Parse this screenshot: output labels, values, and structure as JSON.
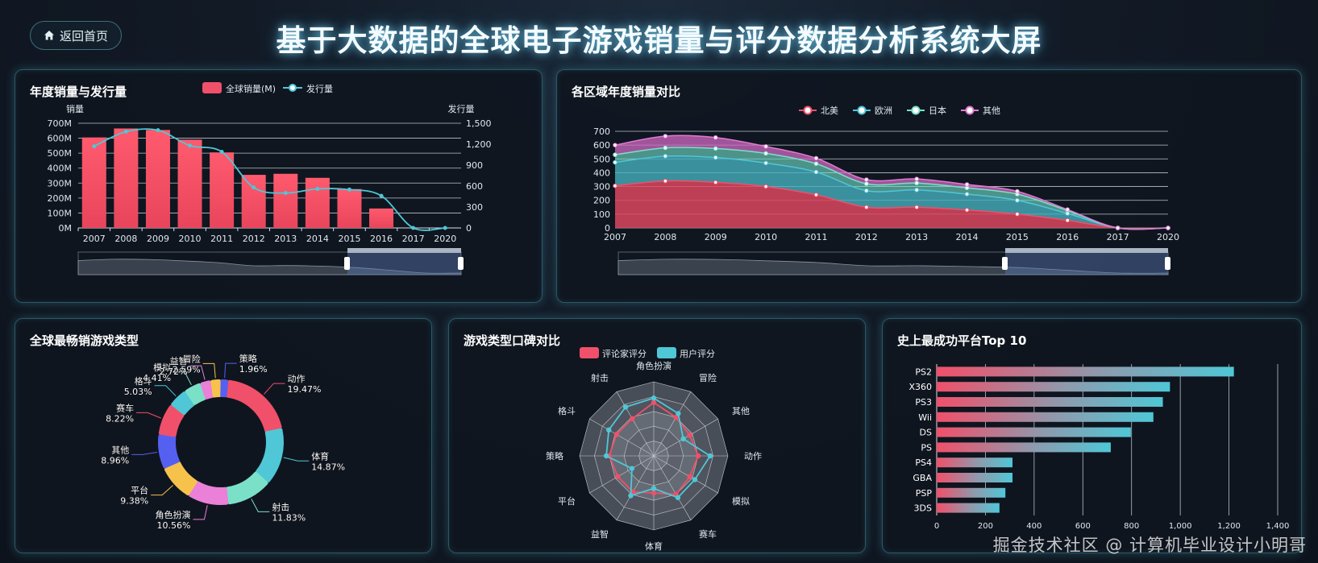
{
  "header": {
    "home_label": "返回首页",
    "title": "基于大数据的全球电子游戏销量与评分数据分析系统大屏"
  },
  "panels": {
    "annual": "年度销量与发行量",
    "region": "各区域年度销量对比",
    "genre": "全球最畅销游戏类型",
    "reputation": "游戏类型口碑对比",
    "platform": "史上最成功平台Top 10"
  },
  "watermark": "掘金技术社区 @ 计算机毕业设计小明哥",
  "colors": {
    "red": "#f0506a",
    "cyan": "#4fc7d6",
    "mint": "#7be0c8",
    "pink": "#e07ad0"
  },
  "chart_data": [
    {
      "id": "annual",
      "type": "bar",
      "title": "年度销量与发行量",
      "categories": [
        "2007",
        "2008",
        "2009",
        "2010",
        "2011",
        "2012",
        "2013",
        "2014",
        "2015",
        "2016",
        "2017",
        "2020"
      ],
      "ylabel": "销量",
      "y2label": "发行量",
      "y_ticks": [
        "0M",
        "100M",
        "200M",
        "300M",
        "400M",
        "500M",
        "600M",
        "700M"
      ],
      "y2_ticks": [
        "0",
        "300",
        "600",
        "900",
        "1,200",
        "1,500"
      ],
      "ylim": [
        0,
        700
      ],
      "y2lim": [
        0,
        1500
      ],
      "series": [
        {
          "name": "全球销量(M)",
          "type": "bar",
          "values": [
            605,
            665,
            655,
            590,
            505,
            355,
            362,
            335,
            260,
            130,
            0,
            0
          ]
        },
        {
          "name": "发行量",
          "type": "line",
          "values": [
            1170,
            1380,
            1400,
            1180,
            1090,
            580,
            500,
            560,
            550,
            460,
            0,
            0
          ]
        }
      ]
    },
    {
      "id": "region",
      "type": "area",
      "title": "各区域年度销量对比",
      "categories": [
        "2007",
        "2008",
        "2009",
        "2010",
        "2011",
        "2012",
        "2013",
        "2014",
        "2015",
        "2016",
        "2017",
        "2020"
      ],
      "y_ticks": [
        "0",
        "100",
        "200",
        "300",
        "400",
        "500",
        "600",
        "700"
      ],
      "ylim": [
        0,
        700
      ],
      "stacked": true,
      "series": [
        {
          "name": "北美",
          "values": [
            305,
            340,
            330,
            300,
            240,
            150,
            150,
            130,
            100,
            55,
            0,
            0
          ]
        },
        {
          "name": "欧洲",
          "values": [
            170,
            180,
            180,
            170,
            165,
            120,
            125,
            115,
            100,
            50,
            0,
            0
          ]
        },
        {
          "name": "日本",
          "values": [
            55,
            60,
            65,
            70,
            60,
            50,
            50,
            45,
            45,
            20,
            0,
            0
          ]
        },
        {
          "name": "其他",
          "values": [
            70,
            85,
            80,
            50,
            40,
            30,
            30,
            25,
            20,
            8,
            0,
            0
          ]
        }
      ]
    },
    {
      "id": "genre",
      "type": "pie",
      "title": "全球最畅销游戏类型",
      "slices": [
        {
          "name": "动作",
          "pct": "19.47%",
          "value": 19.47,
          "color": "#f0506a"
        },
        {
          "name": "体育",
          "pct": "14.87%",
          "value": 14.87,
          "color": "#4fc7d6"
        },
        {
          "name": "射击",
          "pct": "11.83%",
          "value": 11.83,
          "color": "#7be0c8"
        },
        {
          "name": "角色扮演",
          "pct": "10.56%",
          "value": 10.56,
          "color": "#ea80d8"
        },
        {
          "name": "平台",
          "pct": "9.38%",
          "value": 9.38,
          "color": "#f7c24c"
        },
        {
          "name": "其他",
          "pct": "8.96%",
          "value": 8.96,
          "color": "#5560f0"
        },
        {
          "name": "赛车",
          "pct": "8.22%",
          "value": 8.22,
          "color": "#f0506a"
        },
        {
          "name": "格斗",
          "pct": "5.03%",
          "value": 5.03,
          "color": "#4fc7d6"
        },
        {
          "name": "模拟",
          "pct": "4.41%",
          "value": 4.41,
          "color": "#7be0c8"
        },
        {
          "name": "益智",
          "pct": "2.72%",
          "value": 2.72,
          "color": "#ea80d8"
        },
        {
          "name": "冒险",
          "pct": "2.59%",
          "value": 2.59,
          "color": "#f7c24c"
        },
        {
          "name": "策略",
          "pct": "1.96%",
          "value": 1.96,
          "color": "#5560f0"
        }
      ]
    },
    {
      "id": "reputation",
      "type": "radar",
      "title": "游戏类型口碑对比",
      "axes": [
        "角色扮演",
        "冒险",
        "其他",
        "动作",
        "模拟",
        "赛车",
        "体育",
        "益智",
        "平台",
        "策略",
        "格斗",
        "射击"
      ],
      "series": [
        {
          "name": "评论家评分",
          "values": [
            0.72,
            0.6,
            0.56,
            0.6,
            0.56,
            0.6,
            0.5,
            0.56,
            0.56,
            0.6,
            0.58,
            0.58
          ]
        },
        {
          "name": "用户评分",
          "values": [
            0.78,
            0.66,
            0.46,
            0.76,
            0.64,
            0.65,
            0.44,
            0.62,
            0.34,
            0.64,
            0.7,
            0.76
          ]
        }
      ]
    },
    {
      "id": "platform",
      "type": "bar",
      "orientation": "horizontal",
      "title": "史上最成功平台Top 10",
      "categories": [
        "PS2",
        "X360",
        "PS3",
        "Wii",
        "DS",
        "PS",
        "PS4",
        "GBA",
        "PSP",
        "3DS"
      ],
      "values": [
        1255,
        985,
        955,
        915,
        820,
        735,
        320,
        320,
        290,
        265
      ],
      "x_ticks": [
        "0",
        "200",
        "400",
        "600",
        "800",
        "1,000",
        "1,200",
        "1,400"
      ],
      "xlim": [
        0,
        1440
      ]
    }
  ]
}
